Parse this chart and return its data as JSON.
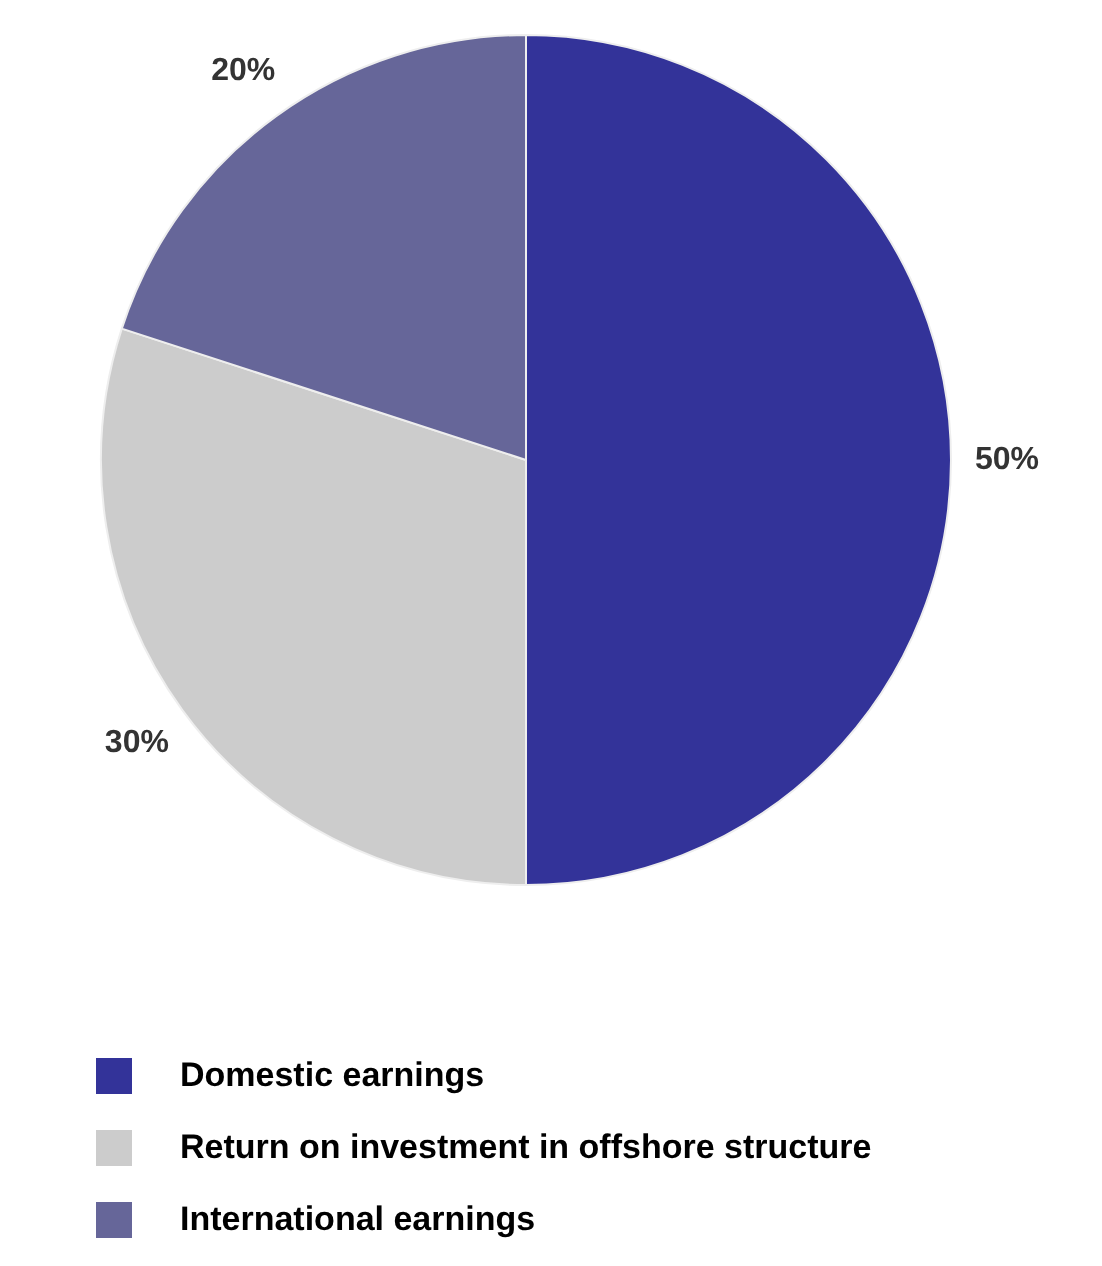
{
  "chart_data": {
    "type": "pie",
    "categories": [
      "Domestic earnings",
      "Return on investment in offshore structure",
      "International earnings"
    ],
    "values": [
      50,
      30,
      20
    ],
    "colors": [
      "#333399",
      "#cccccc",
      "#666699"
    ],
    "value_labels": [
      "50%",
      "30%",
      "20%"
    ],
    "legend": "bottom"
  }
}
